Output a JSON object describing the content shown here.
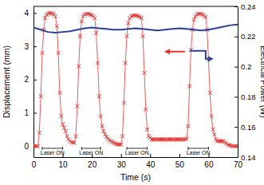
{
  "chart_data": {
    "type": "line",
    "xlabel": "Time (s)",
    "ylabel": "Displacement (mm)",
    "y2label": "Electrical Power (W)",
    "xlim": [
      0,
      70
    ],
    "xticks": [
      0,
      10,
      20,
      30,
      40,
      50,
      60,
      70
    ],
    "ylim": [
      -0.33,
      4.2
    ],
    "yticks": [
      0,
      1,
      2,
      3,
      4
    ],
    "y2lim": [
      0.14,
      0.24
    ],
    "y2ticks": [
      0.14,
      0.16,
      0.18,
      0.2,
      0.22,
      0.24
    ],
    "series": [
      {
        "color": "#e8312f",
        "marker": "x",
        "x": [
          0,
          0.5,
          1,
          1.5,
          2,
          2.5,
          3,
          3.5,
          4,
          4.5,
          5,
          5.5,
          6,
          6.5,
          7,
          7.5,
          8,
          8.5,
          9,
          9.5,
          10,
          10.5,
          11,
          11.5,
          12,
          12.5,
          13,
          13.5,
          14,
          14.5,
          15,
          15.5,
          16,
          16.5,
          17,
          17.5,
          18,
          18.5,
          19,
          19.5,
          20,
          20.5,
          21,
          21.5,
          22,
          22.5,
          23,
          23.5,
          24,
          24.5,
          25,
          25.5,
          26,
          26.5,
          27,
          27.5,
          28,
          28.5,
          29,
          29.5,
          30,
          30.5,
          31,
          31.5,
          32,
          32.5,
          33,
          33.5,
          34,
          34.5,
          35,
          35.5,
          36,
          36.5,
          37,
          37.5,
          38,
          38.5,
          39,
          39.5,
          40,
          40.5,
          41,
          41.5,
          42,
          42.5,
          43,
          43.5,
          44,
          44.5,
          45,
          45.5,
          46,
          46.5,
          47,
          47.5,
          48,
          48.5,
          49,
          49.5,
          50,
          50.5,
          51,
          51.5,
          52,
          52.5,
          53,
          53.5,
          54,
          54.5,
          55,
          55.5,
          56,
          56.5,
          57,
          57.5,
          58,
          58.5,
          59,
          59.5,
          60,
          60.5,
          61,
          61.5,
          62,
          62.5,
          63,
          63.5,
          64,
          64.5,
          65,
          65.5,
          66,
          66.5,
          67,
          67.5,
          68,
          68.5,
          69,
          69.5,
          70
        ],
        "values": [
          0,
          0,
          0,
          0,
          0.4,
          1.5,
          2.8,
          3.5,
          3.85,
          3.95,
          3.98,
          4,
          4,
          3.98,
          3.95,
          3.9,
          3.6,
          2.8,
          1.6,
          0.9,
          0.65,
          0.55,
          0.45,
          0.3,
          0.2,
          0.15,
          0.12,
          0.1,
          0.1,
          0.3,
          1.2,
          2.4,
          3.3,
          3.75,
          3.9,
          3.95,
          3.97,
          3.98,
          3.97,
          3.95,
          3.93,
          3.9,
          3.85,
          3.4,
          2.5,
          1.5,
          0.9,
          0.6,
          0.45,
          0.35,
          0.28,
          0.22,
          0.18,
          0.15,
          0.12,
          0.1,
          0.08,
          0.06,
          0.05,
          0.05,
          0.05,
          0.3,
          1.3,
          2.5,
          3.3,
          3.7,
          3.85,
          3.9,
          3.92,
          3.93,
          3.93,
          3.92,
          3.9,
          3.88,
          3.85,
          3.3,
          2.2,
          1.1,
          0.5,
          0.3,
          0.25,
          0.2,
          0.2,
          0.2,
          0.2,
          0.2,
          0.2,
          0.2,
          0.2,
          0.2,
          0.2,
          0.2,
          0.2,
          0.2,
          0.2,
          0.2,
          0.2,
          0.2,
          0.2,
          0.2,
          0.2,
          0.2,
          0.2,
          0.2,
          0.2,
          0.22,
          0.6,
          1.8,
          2.9,
          3.5,
          3.8,
          3.9,
          3.95,
          3.97,
          3.98,
          3.97,
          3.95,
          3.92,
          3.88,
          3.5,
          2.6,
          1.6,
          0.9,
          0.5,
          0.35,
          0.2,
          0.15,
          0.15,
          0.15,
          0.15,
          0.15,
          0.12,
          0.08,
          0.05,
          0.03,
          0.02,
          0,
          0,
          0,
          0,
          0
        ]
      },
      {
        "color": "#2b3f97",
        "axis": "y2",
        "x": [
          0,
          2.5,
          5,
          7.5,
          10,
          12.5,
          15,
          17.5,
          20,
          22.5,
          25,
          27.5,
          30,
          32.5,
          35,
          37.5,
          40,
          42.5,
          45,
          47.5,
          50,
          52.5,
          55,
          57.5,
          60,
          62.5,
          65,
          67.5,
          70
        ],
        "values": [
          0.226,
          0.2245,
          0.223,
          0.2225,
          0.223,
          0.2235,
          0.2245,
          0.2255,
          0.226,
          0.2255,
          0.225,
          0.2245,
          0.2245,
          0.225,
          0.2255,
          0.225,
          0.2245,
          0.224,
          0.2245,
          0.225,
          0.2255,
          0.225,
          0.2245,
          0.224,
          0.2245,
          0.2255,
          0.2265,
          0.2275,
          0.228
        ]
      }
    ],
    "annotations": [
      {
        "text": "Laser ON",
        "x": [
          3,
          10
        ]
      },
      {
        "text": "Laser ON",
        "x": [
          16.5,
          23
        ]
      },
      {
        "text": "Laser ON",
        "x": [
          32,
          39
        ]
      },
      {
        "text": "Laser ON",
        "x": [
          53,
          60
        ]
      }
    ]
  }
}
